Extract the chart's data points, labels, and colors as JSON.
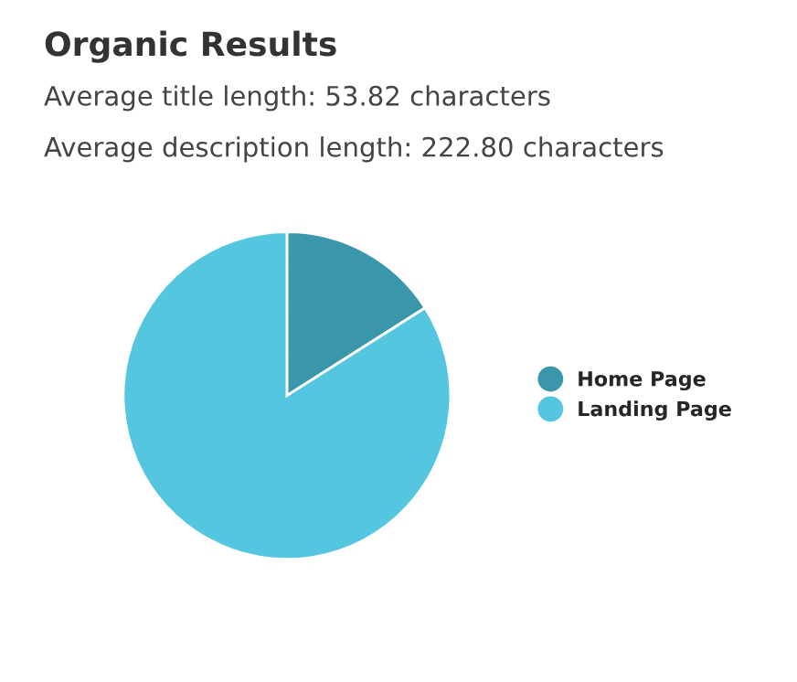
{
  "chart_data": {
    "type": "pie",
    "title": "Organic Results",
    "annotations": [
      "Average title length: 53.82 characters",
      "Average description length: 222.80 characters"
    ],
    "categories": [
      "Home Page",
      "Landing Page"
    ],
    "values": [
      16,
      84
    ],
    "colors": [
      "#3a97ab",
      "#55c6e0"
    ],
    "legend": "right"
  }
}
